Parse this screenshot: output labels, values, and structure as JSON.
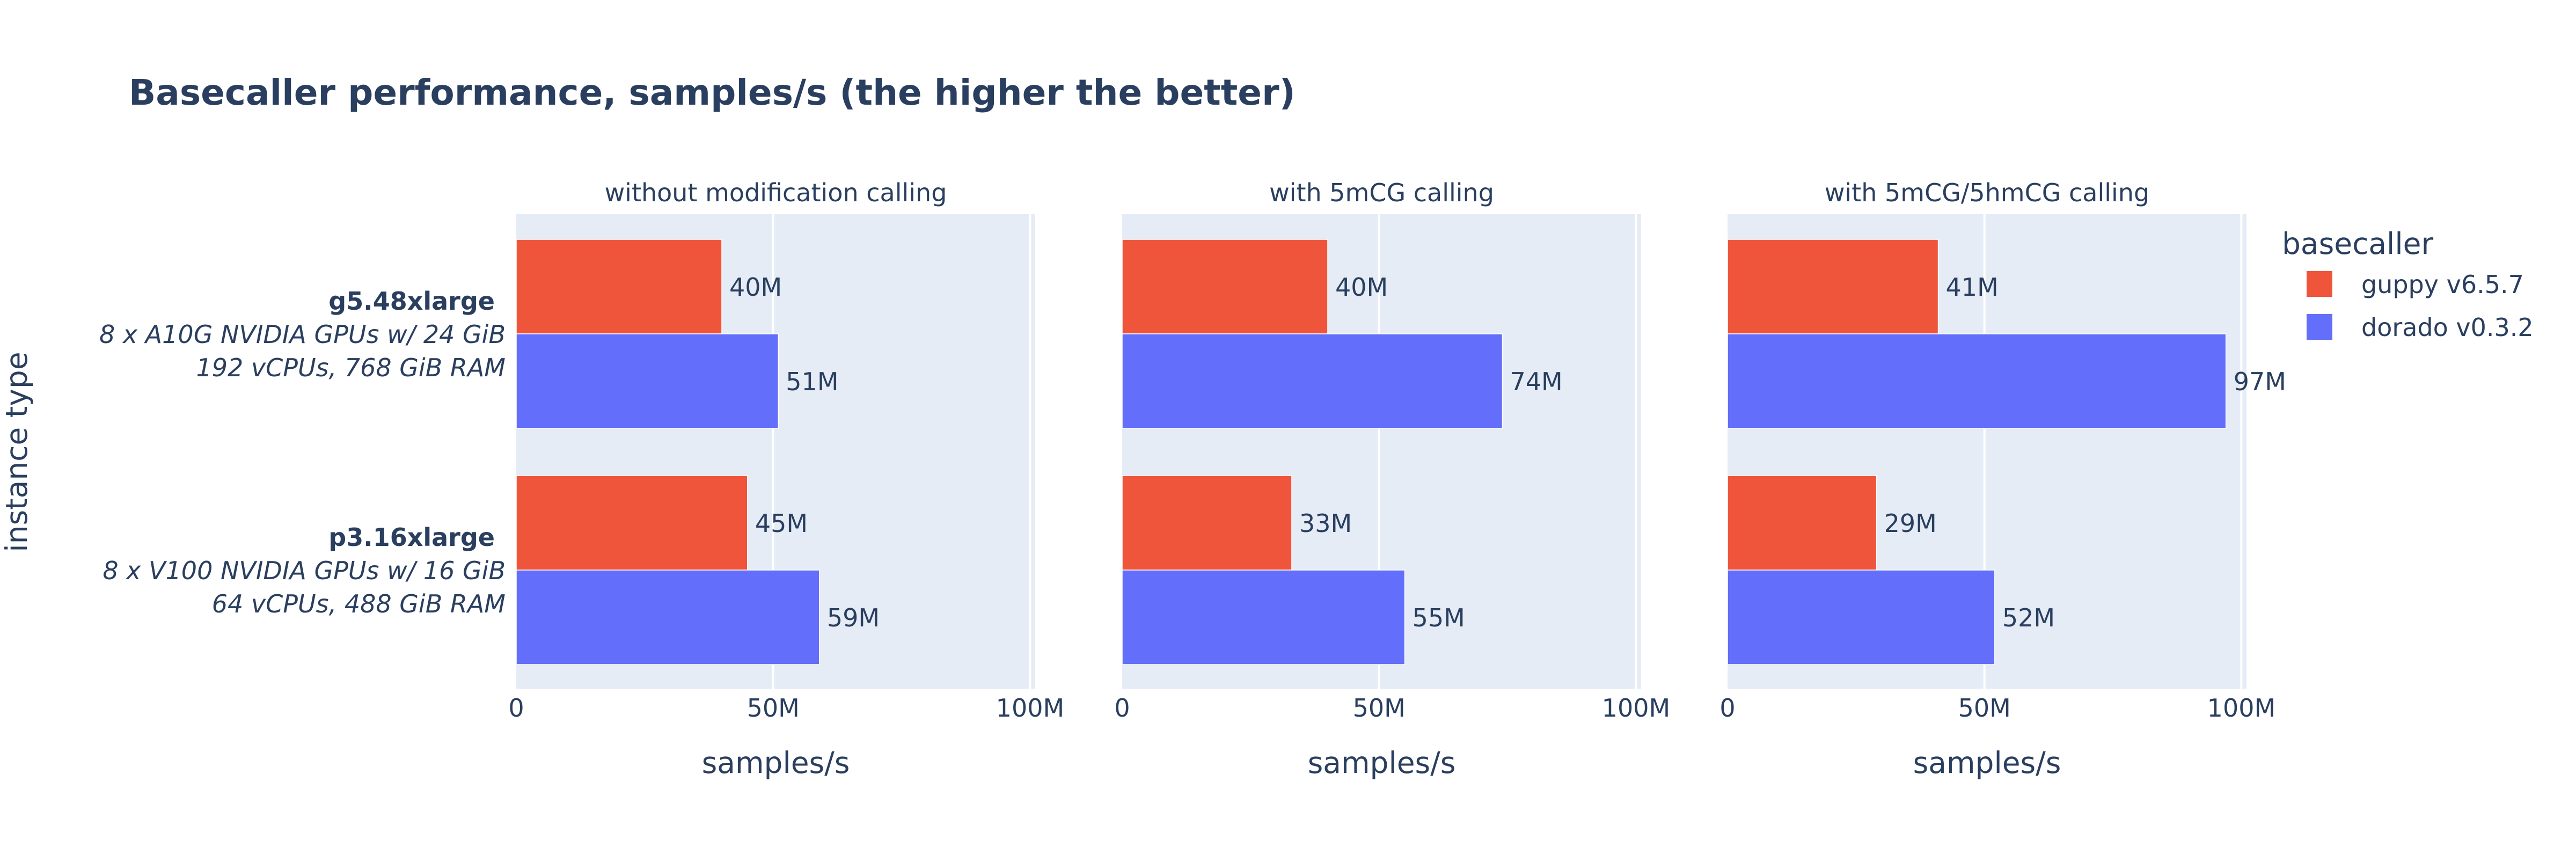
{
  "chart_data": {
    "type": "bar",
    "orientation": "horizontal",
    "title": "Basecaller performance, samples/s (the higher the better)",
    "ylabel": "instance type",
    "xlabel": "samples/s",
    "xlim": [
      0,
      101000000
    ],
    "xticks": [
      {
        "value": 0,
        "label": "0"
      },
      {
        "value": 50000000,
        "label": "50M"
      },
      {
        "value": 100000000,
        "label": "100M"
      }
    ],
    "grid": true,
    "legend": {
      "title": "basecaller",
      "placement": "right",
      "entries": [
        {
          "name": "guppy v6.5.7",
          "color": "#EF553B"
        },
        {
          "name": "dorado v0.3.2",
          "color": "#636EFA"
        }
      ]
    },
    "categories": [
      {
        "name": "g5.48xlarge",
        "detail": [
          "8 x A10G NVIDIA GPUs w/ 24 GiB",
          "192 vCPUs, 768 GiB RAM"
        ]
      },
      {
        "name": "p3.16xlarge",
        "detail": [
          "8 x V100 NVIDIA GPUs w/ 16 GiB",
          "64 vCPUs, 488 GiB RAM"
        ]
      }
    ],
    "panels": [
      {
        "title": "without modification calling",
        "series": [
          {
            "name": "guppy v6.5.7",
            "color": "#EF553B",
            "values": [
              40000000,
              45000000
            ],
            "labels": [
              "40M",
              "45M"
            ]
          },
          {
            "name": "dorado v0.3.2",
            "color": "#636EFA",
            "values": [
              51000000,
              59000000
            ],
            "labels": [
              "51M",
              "59M"
            ]
          }
        ]
      },
      {
        "title": "with 5mCG calling",
        "series": [
          {
            "name": "guppy v6.5.7",
            "color": "#EF553B",
            "values": [
              40000000,
              33000000
            ],
            "labels": [
              "40M",
              "33M"
            ]
          },
          {
            "name": "dorado v0.3.2",
            "color": "#636EFA",
            "values": [
              74000000,
              55000000
            ],
            "labels": [
              "74M",
              "55M"
            ]
          }
        ]
      },
      {
        "title": "with 5mCG/5hmCG calling",
        "series": [
          {
            "name": "guppy v6.5.7",
            "color": "#EF553B",
            "values": [
              41000000,
              29000000
            ],
            "labels": [
              "41M",
              "29M"
            ]
          },
          {
            "name": "dorado v0.3.2",
            "color": "#636EFA",
            "values": [
              97000000,
              52000000
            ],
            "labels": [
              "97M",
              "52M"
            ]
          }
        ]
      }
    ]
  },
  "colors": {
    "plot_background": "#E5ECF6",
    "text": "#2A3F5F",
    "grid": "#FFFFFF"
  }
}
